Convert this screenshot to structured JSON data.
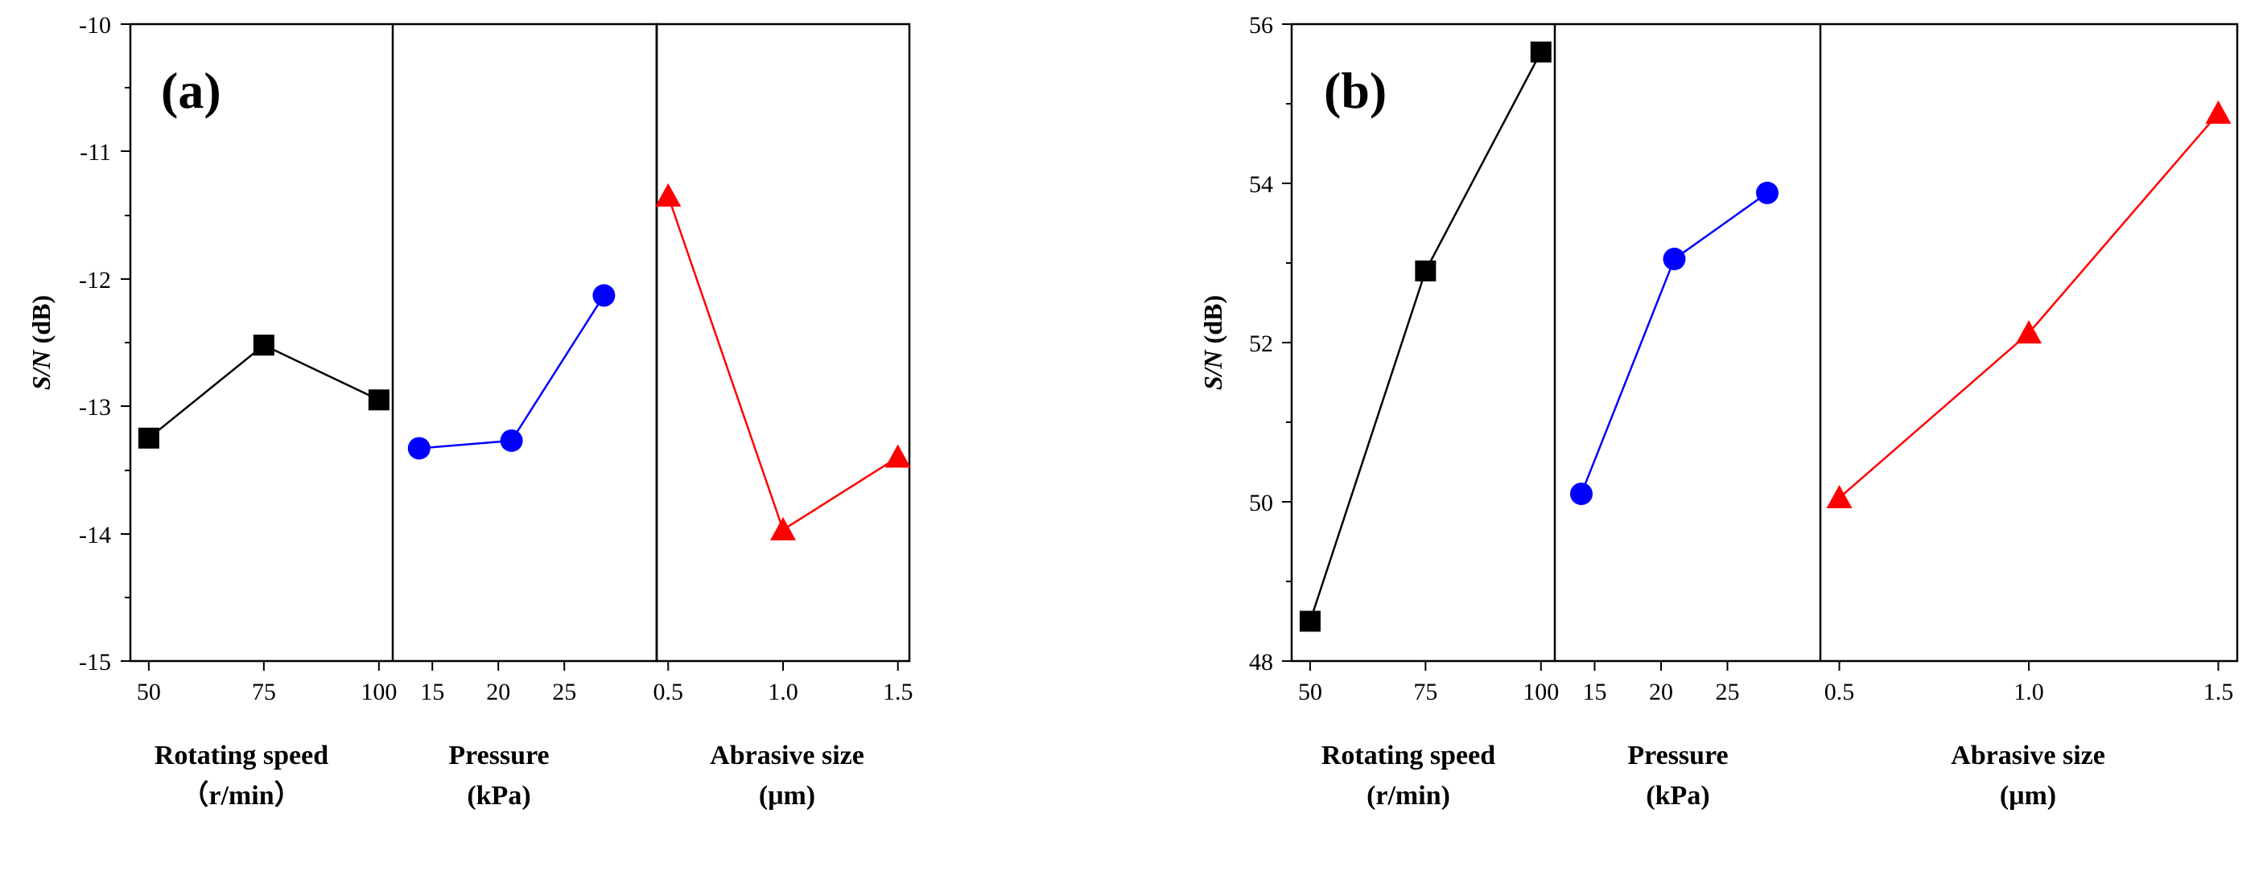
{
  "chart_data": [
    {
      "type": "line",
      "panel_label": "(a)",
      "ylabel_italic": "S/N",
      "ylabel_rest": " (dB)",
      "ylim": [
        -15,
        -10
      ],
      "yticks": [
        "-15",
        "-14",
        "-13",
        "-12",
        "-11",
        "-10"
      ],
      "groups": [
        {
          "factor": "Rotating speed",
          "unit": "（r/min）",
          "tick_labels": [
            "50",
            "75",
            "100"
          ],
          "tick_values": [
            50,
            75,
            100
          ],
          "xlim": [
            46,
            103
          ],
          "x": [
            50,
            75,
            100
          ],
          "values": [
            -13.25,
            -12.52,
            -12.95
          ],
          "marker": "square",
          "color": "#000000"
        },
        {
          "factor": "Pressure",
          "unit": "(kPa)",
          "tick_labels": [
            "15",
            "20",
            "25"
          ],
          "tick_values": [
            15,
            20,
            25
          ],
          "xlim": [
            12,
            32
          ],
          "x": [
            14,
            21,
            28
          ],
          "values": [
            -13.33,
            -13.27,
            -12.13
          ],
          "marker": "circle",
          "color": "#0000ff"
        },
        {
          "factor": "Abrasive size",
          "unit": "(μm)",
          "tick_labels": [
            "0.5",
            "1.0",
            "1.5"
          ],
          "tick_values": [
            0.5,
            1.0,
            1.5
          ],
          "xlim": [
            0.45,
            1.55
          ],
          "x": [
            0.5,
            1.0,
            1.5
          ],
          "values": [
            -11.35,
            -13.97,
            -13.4
          ],
          "marker": "triangle",
          "color": "#ff0000"
        }
      ]
    },
    {
      "type": "line",
      "panel_label": "(b)",
      "ylabel_italic": "S/N",
      "ylabel_rest": " (dB)",
      "ylim": [
        48,
        56
      ],
      "yticks": [
        "48",
        "50",
        "52",
        "54",
        "56"
      ],
      "groups": [
        {
          "factor": "Rotating speed",
          "unit": "(r/min)",
          "tick_labels": [
            "50",
            "75",
            "100"
          ],
          "tick_values": [
            50,
            75,
            100
          ],
          "xlim": [
            46,
            103
          ],
          "x": [
            50,
            75,
            100
          ],
          "values": [
            48.5,
            52.9,
            55.65
          ],
          "marker": "square",
          "color": "#000000"
        },
        {
          "factor": "Pressure",
          "unit": "(kPa)",
          "tick_labels": [
            "15",
            "20",
            "25"
          ],
          "tick_values": [
            15,
            20,
            25
          ],
          "xlim": [
            12,
            32
          ],
          "x": [
            14,
            21,
            28
          ],
          "values": [
            50.1,
            53.05,
            53.88
          ],
          "marker": "circle",
          "color": "#0000ff"
        },
        {
          "factor": "Abrasive size",
          "unit": "(μm)",
          "tick_labels": [
            "0.5",
            "1.0",
            "1.5"
          ],
          "tick_values": [
            0.5,
            1.0,
            1.5
          ],
          "xlim": [
            0.45,
            1.55
          ],
          "x": [
            0.5,
            1.0,
            1.5
          ],
          "values": [
            50.05,
            52.12,
            54.88
          ],
          "marker": "triangle",
          "color": "#ff0000"
        }
      ]
    }
  ]
}
